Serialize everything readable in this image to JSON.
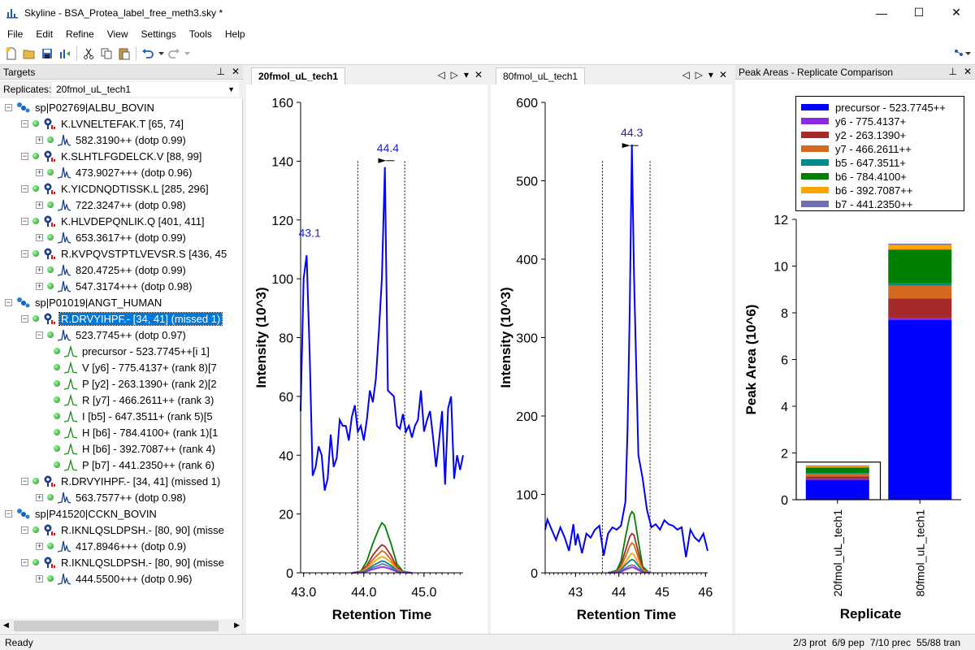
{
  "window": {
    "title": "Skyline - BSA_Protea_label_free_meth3.sky *",
    "minimize": "—",
    "maximize": "☐",
    "close": "✕"
  },
  "menu": [
    "File",
    "Edit",
    "Refine",
    "View",
    "Settings",
    "Tools",
    "Help"
  ],
  "targets": {
    "header": "Targets",
    "replicates_label": "Replicates:",
    "replicates_value": "20fmol_uL_tech1",
    "tree": [
      {
        "level": 0,
        "type": "protein",
        "expander": "-",
        "label": "sp|P02769|ALBU_BOVIN"
      },
      {
        "level": 1,
        "type": "peptide",
        "expander": "-",
        "label": "K.LVNELTEFAK.T [65, 74]"
      },
      {
        "level": 2,
        "type": "precursor",
        "expander": "+",
        "label": "582.3190++ (dotp 0.99)"
      },
      {
        "level": 1,
        "type": "peptide",
        "expander": "-",
        "label": "K.SLHTLFGDELCK.V [88, 99]"
      },
      {
        "level": 2,
        "type": "precursor",
        "expander": "+",
        "label": "473.9027+++ (dotp 0.96)"
      },
      {
        "level": 1,
        "type": "peptide",
        "expander": "-",
        "label": "K.YICDNQDTISSK.L [285, 296]"
      },
      {
        "level": 2,
        "type": "precursor",
        "expander": "+",
        "label": "722.3247++ (dotp 0.98)"
      },
      {
        "level": 1,
        "type": "peptide",
        "expander": "-",
        "label": "K.HLVDEPQNLIK.Q [401, 411]"
      },
      {
        "level": 2,
        "type": "precursor",
        "expander": "+",
        "label": "653.3617++ (dotp 0.99)"
      },
      {
        "level": 1,
        "type": "peptide",
        "expander": "-",
        "label": "R.KVPQVSTPTLVEVSR.S [436, 45"
      },
      {
        "level": 2,
        "type": "precursor",
        "expander": "+",
        "label": "820.4725++ (dotp 0.99)"
      },
      {
        "level": 2,
        "type": "precursor",
        "expander": "+",
        "label": "547.3174+++ (dotp 0.98)"
      },
      {
        "level": 0,
        "type": "protein",
        "expander": "-",
        "label": "sp|P01019|ANGT_HUMAN"
      },
      {
        "level": 1,
        "type": "peptide",
        "expander": "-",
        "label": "R.DRVYIHPF.- [34, 41] (missed 1)",
        "selected": true
      },
      {
        "level": 2,
        "type": "precursor",
        "expander": "-",
        "label": "523.7745++ (dotp 0.97)"
      },
      {
        "level": 3,
        "type": "transition",
        "label": "precursor - 523.7745++[i 1]"
      },
      {
        "level": 3,
        "type": "transition",
        "label": "V [y6] - 775.4137+ (rank 8)[7"
      },
      {
        "level": 3,
        "type": "transition",
        "label": "P [y2] - 263.1390+ (rank 2)[2"
      },
      {
        "level": 3,
        "type": "transition",
        "label": "R [y7] - 466.2611++ (rank 3)"
      },
      {
        "level": 3,
        "type": "transition",
        "label": "I [b5] - 647.3511+ (rank 5)[5"
      },
      {
        "level": 3,
        "type": "transition",
        "label": "H [b6] - 784.4100+ (rank 1)[1"
      },
      {
        "level": 3,
        "type": "transition",
        "label": "H [b6] - 392.7087++ (rank 4)"
      },
      {
        "level": 3,
        "type": "transition",
        "label": "P [b7] - 441.2350++ (rank 6)"
      },
      {
        "level": 1,
        "type": "peptide",
        "expander": "-",
        "label": "R.DRVYIHPF.- [34, 41] (missed 1)"
      },
      {
        "level": 2,
        "type": "precursor",
        "expander": "+",
        "label": "563.7577++ (dotp 0.98)"
      },
      {
        "level": 0,
        "type": "protein",
        "expander": "-",
        "label": "sp|P41520|CCKN_BOVIN"
      },
      {
        "level": 1,
        "type": "peptide",
        "expander": "-",
        "label": "R.IKNLQSLDPSH.- [80, 90] (misse"
      },
      {
        "level": 2,
        "type": "precursor",
        "expander": "+",
        "label": "417.8946+++ (dotp 0.9)"
      },
      {
        "level": 1,
        "type": "peptide",
        "expander": "-",
        "label": "R.IKNLQSLDPSH.- [80, 90] (misse"
      },
      {
        "level": 2,
        "type": "precursor",
        "expander": "+",
        "label": "444.5500+++ (dotp 0.96)"
      }
    ]
  },
  "colors": {
    "precursor": "#0000ff",
    "y6": "#8a2be2",
    "y2": "#a52a2a",
    "y7": "#d2691e",
    "b5": "#008b8b",
    "b6": "#008000",
    "b6b": "#ffa500",
    "b7": "#7070b0"
  },
  "chrom1": {
    "tab": "20fmol_uL_tech1",
    "xlabel": "Retention Time",
    "ylabel": "Intensity (10^3)",
    "xlim": [
      42.95,
      45.65
    ],
    "ylim": [
      0,
      160
    ],
    "xticks": [
      43.0,
      44.0,
      45.0
    ],
    "xtick_labels": [
      "43.0",
      "44.0",
      "45.0"
    ],
    "yticks": [
      0,
      20,
      40,
      60,
      80,
      100,
      120,
      140,
      160
    ],
    "peak_labels": [
      {
        "x": 43.1,
        "y": 112,
        "text": "43.1"
      },
      {
        "x": 44.4,
        "y": 141,
        "text": "44.4"
      }
    ],
    "boundaries": [
      43.9,
      44.68
    ],
    "apex": 44.4
  },
  "chrom2": {
    "tab": "80fmol_uL_tech1",
    "xlabel": "Retention Time",
    "ylabel": "Intensity (10^3)",
    "xlim": [
      42.3,
      46.05
    ],
    "ylim": [
      0,
      600
    ],
    "xticks": [
      43,
      44,
      45,
      46
    ],
    "xtick_labels": [
      "43",
      "44",
      "45",
      "46"
    ],
    "yticks": [
      0,
      100,
      200,
      300,
      400,
      500,
      600
    ],
    "peak_labels": [
      {
        "x": 44.3,
        "y": 548,
        "text": "44.3"
      }
    ],
    "boundaries": [
      43.62,
      44.72
    ],
    "apex": 44.3
  },
  "chart_data": [
    {
      "type": "line",
      "title": "",
      "xlabel": "Retention Time",
      "ylabel": "Intensity (10^3)",
      "xlim": [
        42.95,
        45.65
      ],
      "ylim": [
        0,
        160
      ],
      "series": [
        {
          "name": "precursor - 523.7745++",
          "x": [
            42.95,
            43.0,
            43.05,
            43.1,
            43.15,
            43.2,
            43.25,
            43.3,
            43.35,
            43.4,
            43.45,
            43.5,
            43.55,
            43.6,
            43.65,
            43.7,
            43.75,
            43.8,
            43.85,
            43.9,
            43.95,
            44.0,
            44.05,
            44.1,
            44.15,
            44.2,
            44.25,
            44.3,
            44.35,
            44.4,
            44.45,
            44.5,
            44.55,
            44.6,
            44.65,
            44.7,
            44.75,
            44.8,
            44.85,
            44.9,
            44.95,
            45.0,
            45.05,
            45.1,
            45.15,
            45.2,
            45.25,
            45.3,
            45.35,
            45.4,
            45.45,
            45.5,
            45.55,
            45.6,
            45.65
          ],
          "y": [
            55,
            100,
            108,
            75,
            33,
            36,
            43,
            40,
            28,
            32,
            47,
            36,
            39,
            52,
            50,
            50,
            45,
            53,
            57,
            48,
            50,
            45,
            52,
            62,
            58,
            66,
            82,
            100,
            138,
            62,
            61,
            60,
            50,
            49,
            54,
            48,
            50,
            46,
            50,
            52,
            62,
            48,
            52,
            55,
            46,
            36,
            45,
            55,
            30,
            56,
            60,
            32,
            40,
            35,
            40
          ]
        },
        {
          "name": "b6 - 784.4100+",
          "x": [
            43.8,
            43.95,
            44.05,
            44.15,
            44.25,
            44.3,
            44.35,
            44.45,
            44.55,
            44.65,
            44.8
          ],
          "y": [
            0,
            0.5,
            4,
            10,
            15,
            17,
            16,
            10,
            3,
            0.5,
            0
          ]
        },
        {
          "name": "y2 - 263.1390+",
          "x": [
            43.8,
            43.95,
            44.05,
            44.15,
            44.25,
            44.3,
            44.35,
            44.45,
            44.55,
            44.65,
            44.8
          ],
          "y": [
            0,
            0.3,
            2.5,
            6,
            8.5,
            9.5,
            9,
            6,
            2,
            0.3,
            0
          ]
        },
        {
          "name": "y7 - 466.2611++",
          "x": [
            43.8,
            43.95,
            44.05,
            44.15,
            44.25,
            44.3,
            44.35,
            44.45,
            44.55,
            44.65,
            44.8
          ],
          "y": [
            0,
            0.2,
            2,
            4.5,
            6.5,
            7.5,
            7,
            4.5,
            1.5,
            0.2,
            0
          ]
        },
        {
          "name": "b6 - 392.7087++",
          "x": [
            43.8,
            43.95,
            44.05,
            44.15,
            44.25,
            44.3,
            44.35,
            44.45,
            44.55,
            44.65,
            44.8
          ],
          "y": [
            0,
            0.2,
            1.5,
            3.5,
            5,
            5.5,
            5.2,
            3.5,
            1,
            0.2,
            0
          ]
        },
        {
          "name": "b5 - 647.3511+",
          "x": [
            43.8,
            43.95,
            44.05,
            44.15,
            44.25,
            44.3,
            44.35,
            44.45,
            44.55,
            44.65,
            44.8
          ],
          "y": [
            0,
            0.1,
            1,
            2.5,
            3.5,
            4,
            3.8,
            2.5,
            0.8,
            0.1,
            0
          ]
        },
        {
          "name": "b7 - 441.2350++",
          "x": [
            43.8,
            43.95,
            44.05,
            44.15,
            44.25,
            44.3,
            44.35,
            44.45,
            44.55,
            44.65,
            44.8
          ],
          "y": [
            0,
            0.1,
            0.7,
            1.8,
            2.5,
            3,
            2.8,
            1.8,
            0.6,
            0.1,
            0
          ]
        },
        {
          "name": "y6 - 775.4137+",
          "x": [
            43.8,
            43.95,
            44.05,
            44.15,
            44.25,
            44.3,
            44.35,
            44.45,
            44.55,
            44.65,
            44.8
          ],
          "y": [
            0,
            0.1,
            0.5,
            1.2,
            1.7,
            2,
            1.9,
            1.2,
            0.4,
            0.1,
            0
          ]
        }
      ]
    },
    {
      "type": "line",
      "title": "",
      "xlabel": "Retention Time",
      "ylabel": "Intensity (10^3)",
      "xlim": [
        42.3,
        46.05
      ],
      "ylim": [
        0,
        600
      ],
      "series": [
        {
          "name": "precursor - 523.7745++",
          "x": [
            42.3,
            42.35,
            42.45,
            42.55,
            42.65,
            42.75,
            42.85,
            42.95,
            43.0,
            43.05,
            43.15,
            43.25,
            43.35,
            43.45,
            43.55,
            43.65,
            43.75,
            43.85,
            43.95,
            44.05,
            44.15,
            44.2,
            44.25,
            44.3,
            44.35,
            44.45,
            44.55,
            44.65,
            44.75,
            44.85,
            44.95,
            45.05,
            45.15,
            45.25,
            45.35,
            45.45,
            45.55,
            45.65,
            45.75,
            45.85,
            45.95,
            46.05
          ],
          "y": [
            55,
            68,
            55,
            42,
            58,
            45,
            28,
            62,
            35,
            50,
            25,
            50,
            45,
            55,
            60,
            22,
            50,
            58,
            55,
            60,
            90,
            180,
            330,
            546,
            380,
            150,
            120,
            80,
            58,
            62,
            55,
            67,
            62,
            60,
            55,
            58,
            20,
            55,
            45,
            40,
            50,
            28
          ]
        },
        {
          "name": "b6 - 784.4100+",
          "x": [
            43.75,
            43.95,
            44.05,
            44.15,
            44.25,
            44.3,
            44.35,
            44.45,
            44.55,
            44.7
          ],
          "y": [
            0,
            3,
            15,
            45,
            72,
            78,
            75,
            40,
            8,
            0
          ]
        },
        {
          "name": "y2 - 263.1390+",
          "x": [
            43.75,
            43.95,
            44.05,
            44.15,
            44.25,
            44.3,
            44.35,
            44.45,
            44.55,
            44.7
          ],
          "y": [
            0,
            2,
            10,
            28,
            46,
            50,
            48,
            26,
            5,
            0
          ]
        },
        {
          "name": "y7 - 466.2611++",
          "x": [
            43.75,
            43.95,
            44.05,
            44.15,
            44.25,
            44.3,
            44.35,
            44.45,
            44.55,
            44.7
          ],
          "y": [
            0,
            1.5,
            8,
            20,
            34,
            38,
            36,
            19,
            4,
            0
          ]
        },
        {
          "name": "b6 - 392.7087++",
          "x": [
            43.75,
            43.95,
            44.05,
            44.15,
            44.25,
            44.3,
            44.35,
            44.45,
            44.55,
            44.7
          ],
          "y": [
            0,
            1,
            5,
            13,
            22,
            25,
            23,
            12,
            3,
            0
          ]
        },
        {
          "name": "b5 - 647.3511+",
          "x": [
            43.75,
            43.95,
            44.05,
            44.15,
            44.25,
            44.3,
            44.35,
            44.45,
            44.55,
            44.7
          ],
          "y": [
            0,
            0.8,
            4,
            10,
            15,
            17,
            16,
            9,
            2,
            0
          ]
        },
        {
          "name": "b7 - 441.2350++",
          "x": [
            43.75,
            43.95,
            44.05,
            44.15,
            44.25,
            44.3,
            44.35,
            44.45,
            44.55,
            44.7
          ],
          "y": [
            0,
            0.5,
            2.5,
            6,
            9,
            10,
            9.5,
            5,
            1,
            0
          ]
        },
        {
          "name": "y6 - 775.4137+",
          "x": [
            43.75,
            43.95,
            44.05,
            44.15,
            44.25,
            44.3,
            44.35,
            44.45,
            44.55,
            44.7
          ],
          "y": [
            0,
            0.3,
            1.5,
            4,
            6,
            7,
            6.5,
            3.5,
            0.8,
            0
          ]
        }
      ]
    },
    {
      "type": "bar",
      "stacked": true,
      "title": "",
      "xlabel": "Replicate",
      "ylabel": "Peak Area (10^6)",
      "categories": [
        "20fmol_uL_tech1",
        "80fmol_uL_tech1"
      ],
      "ylim": [
        0,
        12
      ],
      "yticks": [
        0,
        2,
        4,
        6,
        8,
        10,
        12
      ],
      "selected_category": "20fmol_uL_tech1",
      "legend_position": "top",
      "series": [
        {
          "name": "precursor - 523.7745++",
          "values": [
            0.85,
            7.7
          ]
        },
        {
          "name": "y6 - 775.4137+",
          "values": [
            0.03,
            0.06
          ]
        },
        {
          "name": "y2 - 263.1390+",
          "values": [
            0.12,
            0.85
          ]
        },
        {
          "name": "y7 - 466.2611++",
          "values": [
            0.1,
            0.55
          ]
        },
        {
          "name": "b5 - 647.3511+",
          "values": [
            0.04,
            0.1
          ]
        },
        {
          "name": "b6 - 784.4100+",
          "values": [
            0.24,
            1.45
          ]
        },
        {
          "name": "b6 - 392.7087++",
          "values": [
            0.06,
            0.2
          ]
        },
        {
          "name": "b7 - 441.2350++",
          "values": [
            0.03,
            0.05
          ]
        }
      ]
    }
  ],
  "peak_areas": {
    "header": "Peak Areas - Replicate Comparison",
    "xlabel": "Replicate",
    "ylabel": "Peak Area (10^6)"
  },
  "status": {
    "ready": "Ready",
    "right": [
      "2/3 prot",
      "6/9 pep",
      "7/10 prec",
      "55/88 tran"
    ]
  }
}
